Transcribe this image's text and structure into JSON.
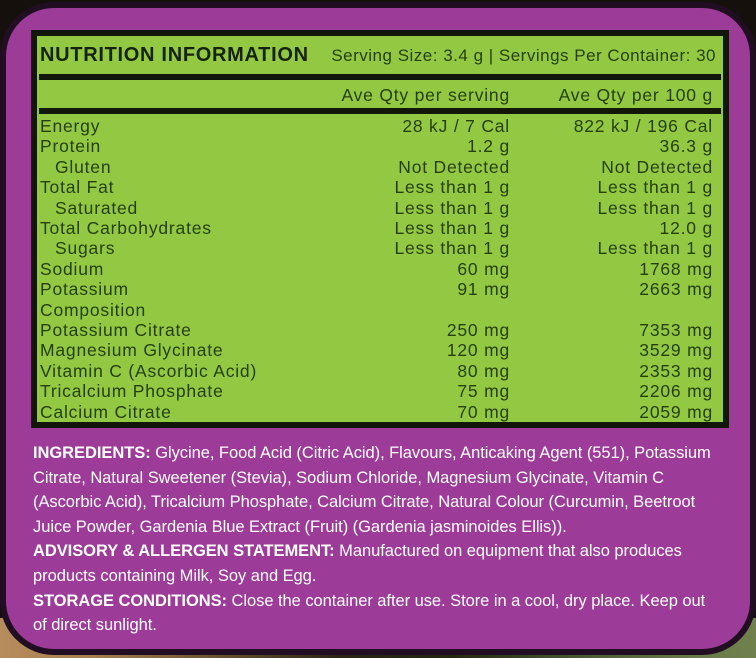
{
  "colors": {
    "purple": "#9d3b99",
    "outline": "#220e22",
    "green": "#93c843",
    "rule": "#13170a",
    "ink": "#25400c",
    "ink-dark": "#15230a",
    "white": "#ffffff",
    "bg-top": "#16100c"
  },
  "header": {
    "title": "NUTRITION INFORMATION",
    "serving_info": "Serving Size: 3.4 g | Servings Per Container: 30"
  },
  "table": {
    "columns": {
      "per_serving": "Ave Qty per serving",
      "per_100g": "Ave Qty per 100 g"
    },
    "rows": [
      {
        "name": "Energy",
        "per_serving": "28 kJ / 7 Cal",
        "per_100g": "822 kJ / 196 Cal",
        "indent": false
      },
      {
        "name": "Protein",
        "per_serving": "1.2 g",
        "per_100g": "36.3 g",
        "indent": false
      },
      {
        "name": "Gluten",
        "per_serving": "Not Detected",
        "per_100g": "Not Detected",
        "indent": true
      },
      {
        "name": "Total Fat",
        "per_serving": "Less than 1 g",
        "per_100g": "Less than 1 g",
        "indent": false
      },
      {
        "name": "Saturated",
        "per_serving": "Less than 1 g",
        "per_100g": "Less than 1 g",
        "indent": true
      },
      {
        "name": "Total Carbohydrates",
        "per_serving": "Less than 1 g",
        "per_100g": "12.0 g",
        "indent": false
      },
      {
        "name": "Sugars",
        "per_serving": "Less than 1 g",
        "per_100g": "Less than 1 g",
        "indent": true
      },
      {
        "name": "Sodium",
        "per_serving": "60 mg",
        "per_100g": "1768 mg",
        "indent": false
      },
      {
        "name": "Potassium",
        "per_serving": "91 mg",
        "per_100g": "2663 mg",
        "indent": false
      },
      {
        "name": "Composition",
        "per_serving": "",
        "per_100g": "",
        "indent": false
      },
      {
        "name": "Potassium Citrate",
        "per_serving": "250 mg",
        "per_100g": "7353 mg",
        "indent": false
      },
      {
        "name": "Magnesium Glycinate",
        "per_serving": "120 mg",
        "per_100g": "3529 mg",
        "indent": false
      },
      {
        "name": "Vitamin C (Ascorbic Acid)",
        "per_serving": "80 mg",
        "per_100g": "2353 mg",
        "indent": false
      },
      {
        "name": "Tricalcium Phosphate",
        "per_serving": "75 mg",
        "per_100g": "2206 mg",
        "indent": false
      },
      {
        "name": "Calcium Citrate",
        "per_serving": "70 mg",
        "per_100g": "2059 mg",
        "indent": false
      }
    ]
  },
  "statements": [
    {
      "label": "INGREDIENTS:",
      "lines": [
        "Glycine, Food Acid (Citric Acid), Flavours, Anticaking Agent (551), Potassium",
        "Citrate, Natural Sweetener (Stevia), Sodium Chloride, Magnesium Glycinate, Vitamin C",
        "(Ascorbic Acid), Tricalcium Phosphate, Calcium Citrate, Natural Colour (Curcumin, Beetroot",
        "Juice Powder, Gardenia Blue Extract (Fruit) (Gardenia jasminoides Ellis))."
      ]
    },
    {
      "label": "ADVISORY & ALLERGEN STATEMENT:",
      "lines": [
        "Manufactured on equipment that also produces",
        "products containing Milk, Soy and Egg."
      ]
    },
    {
      "label": "STORAGE CONDITIONS:",
      "lines": [
        "Close the container after use. Store in a cool, dry place. Keep out",
        "of direct sunlight."
      ]
    }
  ]
}
